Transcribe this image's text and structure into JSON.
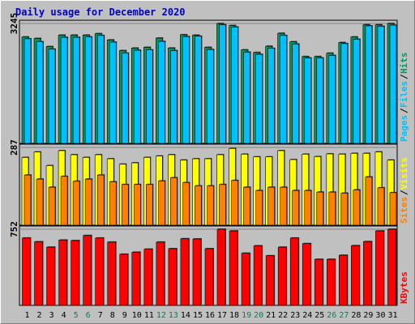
{
  "chart_data": {
    "type": "bar",
    "title": "Daily usage for December 2020",
    "days": [
      "1",
      "2",
      "3",
      "4",
      "5",
      "6",
      "7",
      "8",
      "9",
      "10",
      "11",
      "12",
      "13",
      "14",
      "15",
      "16",
      "17",
      "18",
      "19",
      "20",
      "21",
      "22",
      "23",
      "24",
      "25",
      "26",
      "27",
      "28",
      "29",
      "30",
      "31"
    ],
    "weekend_days": [
      "5",
      "6",
      "12",
      "13",
      "19",
      "20",
      "26",
      "27"
    ],
    "panels": [
      {
        "name": "hits-files-pages",
        "ytick": "3245",
        "ymax": 3245,
        "legend": [
          "Pages",
          "Files",
          "Hits"
        ],
        "series": [
          {
            "name": "Hits",
            "color": "#009966",
            "values": [
              2880,
              2840,
              2620,
              2930,
              2930,
              2930,
              2970,
              2800,
              2510,
              2580,
              2600,
              2850,
              2580,
              2940,
              2930,
              2600,
              3245,
              3190,
              2530,
              2460,
              2630,
              2980,
              2750,
              2350,
              2350,
              2440,
              2730,
              2880,
              3210,
              3210,
              3245
            ]
          },
          {
            "name": "Files",
            "color": "#00c0ff",
            "values": [
              2830,
              2750,
              2550,
              2870,
              2870,
              2880,
              2920,
              2740,
              2440,
              2520,
              2530,
              2760,
              2510,
              2890,
              2900,
              2540,
              3210,
              3150,
              2470,
              2410,
              2570,
              2920,
              2690,
              2310,
              2310,
              2380,
              2700,
              2820,
              3180,
              3170,
              3200
            ]
          },
          {
            "name": "Pages",
            "color": "#00c0ff",
            "values": [
              0,
              0,
              0,
              0,
              0,
              0,
              0,
              0,
              0,
              0,
              0,
              0,
              0,
              0,
              0,
              0,
              0,
              0,
              0,
              0,
              0,
              0,
              0,
              0,
              0,
              0,
              0,
              0,
              0,
              0,
              0
            ]
          }
        ]
      },
      {
        "name": "visits-sites",
        "ytick": "287",
        "ymax": 287,
        "legend": [
          "Sites",
          "Visits"
        ],
        "series": [
          {
            "name": "Visits",
            "color": "#ffff00",
            "values": [
              250,
              270,
              220,
              275,
              260,
              250,
              260,
              245,
              225,
              230,
              250,
              255,
              260,
              240,
              245,
              245,
              260,
              283,
              262,
              252,
              252,
              275,
              242,
              262,
              253,
              263,
              262,
              265,
              265,
              270,
              240
            ]
          },
          {
            "name": "Sites",
            "color": "#ff8000",
            "values": [
              185,
              170,
              140,
              180,
              162,
              170,
              185,
              160,
              150,
              150,
              150,
              163,
              175,
              157,
              145,
              145,
              150,
              165,
              140,
              128,
              140,
              140,
              128,
              128,
              122,
              122,
              118,
              130,
              178,
              138,
              120
            ]
          }
        ]
      },
      {
        "name": "kbytes",
        "ytick": "752",
        "ymax": 752,
        "legend": [
          "KBytes"
        ],
        "series": [
          {
            "name": "KBytes",
            "color": "#ff0000",
            "values": [
              665,
              628,
              575,
              645,
              640,
              690,
              665,
              625,
              505,
              525,
              555,
              625,
              560,
              658,
              656,
              560,
              752,
              735,
              515,
              588,
              490,
              575,
              665,
              610,
              455,
              455,
              495,
              590,
              630,
              735,
              752
            ]
          }
        ]
      }
    ]
  }
}
